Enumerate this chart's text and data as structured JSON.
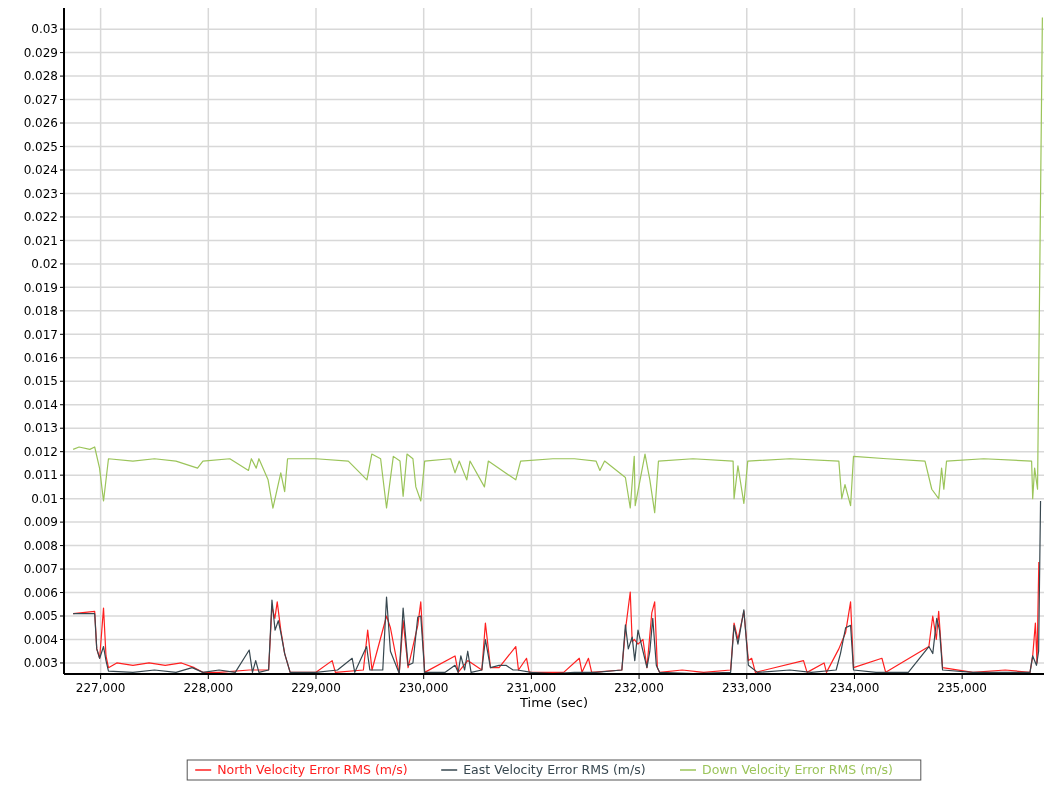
{
  "chart_data": {
    "type": "line",
    "xlabel": "Time (sec)",
    "xlim": [
      226660,
      235760
    ],
    "xticks": [
      {
        "value": 227000,
        "label": "227,000"
      },
      {
        "value": 228000,
        "label": "228,000"
      },
      {
        "value": 229000,
        "label": "229,000"
      },
      {
        "value": 230000,
        "label": "230,000"
      },
      {
        "value": 231000,
        "label": "231,000"
      },
      {
        "value": 232000,
        "label": "232,000"
      },
      {
        "value": 233000,
        "label": "233,000"
      },
      {
        "value": 234000,
        "label": "234,000"
      },
      {
        "value": 235000,
        "label": "235,000"
      }
    ],
    "ylim": [
      0.00253,
      0.0309
    ],
    "yticks": [
      0.003,
      0.004,
      0.005,
      0.006,
      0.007,
      0.008,
      0.009,
      0.01,
      0.011,
      0.012,
      0.013,
      0.014,
      0.015,
      0.016,
      0.017,
      0.018,
      0.019,
      0.02,
      0.021,
      0.022,
      0.023,
      0.024,
      0.025,
      0.026,
      0.027,
      0.028,
      0.029,
      0.03
    ],
    "grid": true,
    "legend": "bottom",
    "line_style": "solid",
    "series": [
      {
        "name": "North Velocity Error RMS (m/s)",
        "color": "#ff2020",
        "x": [
          226745,
          226945,
          226964,
          226991,
          227027,
          227050,
          227073,
          227150,
          227300,
          227450,
          227600,
          227750,
          227870,
          227950,
          228100,
          228380,
          228560,
          228591,
          228618,
          228640,
          228673,
          228709,
          228760,
          229000,
          229150,
          229180,
          229440,
          229480,
          229520,
          229655,
          229691,
          229773,
          229809,
          229855,
          229945,
          229973,
          230009,
          230291,
          230320,
          230409,
          230540,
          230573,
          230620,
          230700,
          230855,
          230880,
          230955,
          230980,
          231300,
          231445,
          231470,
          231530,
          231560,
          231840,
          231873,
          231918,
          231936,
          231955,
          231990,
          232036,
          232073,
          232118,
          232145,
          232170,
          232190,
          232400,
          232600,
          232850,
          232882,
          232918,
          232973,
          233015,
          233045,
          233080,
          233527,
          233560,
          233718,
          233740,
          233855,
          233918,
          233964,
          233991,
          234255,
          234290,
          234691,
          234727,
          234760,
          234782,
          234818,
          235100,
          235400,
          235630,
          235655,
          235680,
          235695,
          235712
        ],
        "values": [
          0.0051,
          0.0052,
          0.0036,
          0.0032,
          0.00534,
          0.0033,
          0.0028,
          0.003,
          0.0029,
          0.003,
          0.0029,
          0.003,
          0.0028,
          0.0026,
          0.0026,
          0.0027,
          0.0027,
          0.0054,
          0.0049,
          0.0056,
          0.0044,
          0.0034,
          0.0026,
          0.0026,
          0.0031,
          0.0026,
          0.0027,
          0.0044,
          0.0027,
          0.005,
          0.0045,
          0.00255,
          0.0048,
          0.0028,
          0.0046,
          0.0056,
          0.0026,
          0.0033,
          0.0026,
          0.0031,
          0.0027,
          0.0047,
          0.0028,
          0.0028,
          0.0037,
          0.0027,
          0.0032,
          0.0026,
          0.0026,
          0.0032,
          0.0026,
          0.0032,
          0.0026,
          0.0027,
          0.0044,
          0.00602,
          0.0039,
          0.004,
          0.0038,
          0.004,
          0.0028,
          0.00513,
          0.0056,
          0.0028,
          0.0026,
          0.0027,
          0.0026,
          0.0027,
          0.0047,
          0.004,
          0.0052,
          0.0031,
          0.0032,
          0.0026,
          0.0031,
          0.0026,
          0.003,
          0.0026,
          0.0036,
          0.0043,
          0.0056,
          0.0028,
          0.0032,
          0.0026,
          0.0037,
          0.005,
          0.004,
          0.0052,
          0.0028,
          0.0026,
          0.0027,
          0.0026,
          0.0033,
          0.0047,
          0.003,
          0.0073
        ]
      },
      {
        "name": "East Velocity Error RMS (m/s)",
        "color": "#37474f",
        "x": [
          226745,
          226945,
          226964,
          226991,
          227027,
          227050,
          227073,
          227300,
          227500,
          227700,
          227850,
          227950,
          228100,
          228250,
          228380,
          228410,
          228440,
          228470,
          228560,
          228591,
          228620,
          228650,
          228673,
          228709,
          228760,
          229000,
          229200,
          229336,
          229360,
          229470,
          229500,
          229620,
          229655,
          229691,
          229773,
          229809,
          229855,
          229900,
          229945,
          229973,
          230009,
          230200,
          230291,
          230320,
          230345,
          230380,
          230409,
          230440,
          230540,
          230573,
          230620,
          230700,
          230764,
          230830,
          230870,
          231000,
          231200,
          231400,
          231600,
          231840,
          231873,
          231900,
          231936,
          231960,
          231990,
          232036,
          232073,
          232100,
          232127,
          232160,
          232190,
          232500,
          232850,
          232882,
          232918,
          232973,
          233015,
          233100,
          233400,
          233600,
          233830,
          233870,
          233918,
          233964,
          233991,
          234200,
          234500,
          234691,
          234727,
          234764,
          234790,
          234818,
          235100,
          235400,
          235630,
          235655,
          235690,
          235710,
          235728
        ],
        "values": [
          0.0051,
          0.0051,
          0.0036,
          0.0032,
          0.0037,
          0.0031,
          0.00265,
          0.0026,
          0.0027,
          0.0026,
          0.0028,
          0.0026,
          0.0027,
          0.0026,
          0.00355,
          0.0026,
          0.0031,
          0.0026,
          0.0027,
          0.00568,
          0.0044,
          0.0048,
          0.0043,
          0.0034,
          0.0026,
          0.0026,
          0.0027,
          0.0032,
          0.0026,
          0.0037,
          0.0027,
          0.0027,
          0.00581,
          0.0035,
          0.00255,
          0.00534,
          0.0029,
          0.003,
          0.00496,
          0.005,
          0.0026,
          0.0026,
          0.0029,
          0.0026,
          0.0033,
          0.0027,
          0.0035,
          0.0026,
          0.0027,
          0.004,
          0.0028,
          0.0029,
          0.0029,
          0.0027,
          0.0027,
          0.0026,
          0.00255,
          0.0026,
          0.0026,
          0.0027,
          0.00462,
          0.0036,
          0.0041,
          0.0031,
          0.0044,
          0.0035,
          0.0028,
          0.0035,
          0.0049,
          0.0029,
          0.0026,
          0.00255,
          0.0026,
          0.0046,
          0.0038,
          0.00526,
          0.0029,
          0.0026,
          0.0027,
          0.0026,
          0.0027,
          0.0034,
          0.0045,
          0.0046,
          0.0027,
          0.0026,
          0.0026,
          0.0037,
          0.0034,
          0.0049,
          0.0044,
          0.0027,
          0.0026,
          0.0026,
          0.0026,
          0.0033,
          0.0029,
          0.0035,
          0.0099
        ]
      },
      {
        "name": "Down Velocity Error RMS (m/s)",
        "color": "#9bc45a",
        "x": [
          226745,
          226800,
          226900,
          226945,
          226990,
          227027,
          227073,
          227300,
          227500,
          227700,
          227900,
          227950,
          228200,
          228373,
          228400,
          228445,
          228470,
          228555,
          228600,
          228673,
          228709,
          228736,
          229000,
          229300,
          229473,
          229518,
          229600,
          229655,
          229718,
          229780,
          229809,
          229845,
          229900,
          229927,
          229973,
          230009,
          230250,
          230291,
          230330,
          230400,
          230430,
          230564,
          230600,
          230855,
          230900,
          231200,
          231400,
          231600,
          231636,
          231680,
          231873,
          231918,
          231955,
          231964,
          232055,
          232100,
          232145,
          232180,
          232500,
          232873,
          232882,
          232918,
          232973,
          233009,
          233400,
          233855,
          233882,
          233912,
          233964,
          233991,
          234300,
          234655,
          234718,
          234782,
          234809,
          234830,
          234855,
          235200,
          235645,
          235655,
          235673,
          235700,
          235745
        ],
        "values": [
          0.0121,
          0.0122,
          0.0121,
          0.0122,
          0.0113,
          0.0099,
          0.0117,
          0.0116,
          0.0117,
          0.0116,
          0.0113,
          0.0116,
          0.0117,
          0.0112,
          0.0117,
          0.0113,
          0.0117,
          0.0108,
          0.0096,
          0.0111,
          0.0103,
          0.0117,
          0.0117,
          0.0116,
          0.0108,
          0.0119,
          0.0117,
          0.0096,
          0.0118,
          0.0116,
          0.0101,
          0.0119,
          0.0117,
          0.0105,
          0.0099,
          0.0116,
          0.0117,
          0.0111,
          0.0116,
          0.0108,
          0.0116,
          0.0105,
          0.0116,
          0.0108,
          0.0116,
          0.0117,
          0.0117,
          0.0116,
          0.0112,
          0.0116,
          0.0109,
          0.0096,
          0.0118,
          0.0097,
          0.0119,
          0.0108,
          0.0094,
          0.0116,
          0.0117,
          0.0116,
          0.01,
          0.0114,
          0.0098,
          0.0116,
          0.0117,
          0.0116,
          0.01,
          0.0106,
          0.0097,
          0.0118,
          0.0117,
          0.0116,
          0.0104,
          0.01,
          0.0113,
          0.0104,
          0.0116,
          0.0117,
          0.0116,
          0.01,
          0.0113,
          0.0104,
          0.0305
        ]
      }
    ]
  }
}
